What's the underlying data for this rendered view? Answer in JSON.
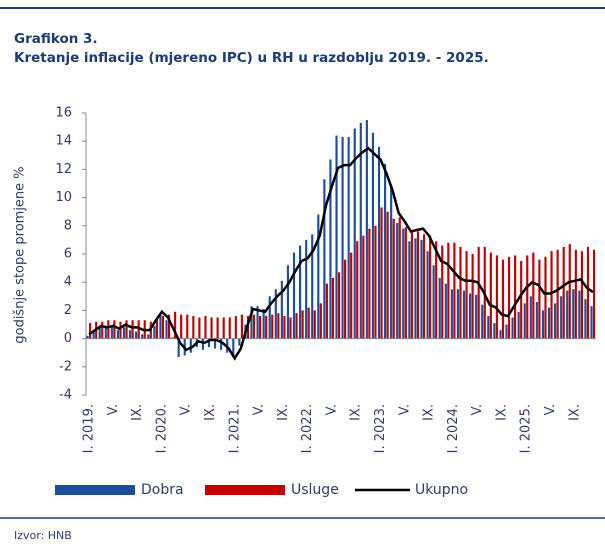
{
  "chart_data": {
    "type": "bar-line",
    "title": "Grafikon 3.",
    "subtitle": "Kretanje inflacije (mjereno IPC) u RH u razdoblju 2019. - 2025.",
    "y_label": "godišnje stope promjene %",
    "source": "Izvor: HNB",
    "legend": "bottom",
    "categories": [
      "I. 2019.",
      null,
      null,
      null,
      "V.",
      null,
      null,
      null,
      "IX.",
      null,
      null,
      null,
      "I. 2020.",
      null,
      null,
      null,
      "V.",
      null,
      null,
      null,
      "IX.",
      null,
      null,
      null,
      "I. 2021.",
      null,
      null,
      null,
      "V.",
      null,
      null,
      null,
      "IX.",
      null,
      null,
      null,
      "I. 2022.",
      null,
      null,
      null,
      "V.",
      null,
      null,
      null,
      "IX.",
      null,
      null,
      null,
      "I. 2023.",
      null,
      null,
      null,
      "V.",
      null,
      null,
      null,
      "IX.",
      null,
      null,
      null,
      "I. 2024.",
      null,
      null,
      null,
      "V.",
      null,
      null,
      null,
      "IX.",
      null,
      null,
      null,
      "I. 2025.",
      null,
      null,
      null,
      "V.",
      null,
      null,
      null,
      "IX.",
      null,
      null,
      null
    ],
    "ylim": [
      -4,
      16
    ],
    "yticks": [
      -4,
      -2,
      0,
      2,
      4,
      6,
      8,
      10,
      12,
      14,
      16
    ],
    "series": [
      {
        "name": "Dobra",
        "kind": "bar",
        "color": "#1f4e99",
        "values": [
          0.2,
          0.6,
          0.8,
          0.9,
          0.9,
          0.6,
          0.8,
          0.6,
          0.5,
          0.3,
          0.3,
          0.9,
          1.8,
          1.3,
          0.1,
          -1.3,
          -1.2,
          -1.0,
          -0.6,
          -0.8,
          -0.6,
          -0.7,
          -0.8,
          -1.0,
          -1.3,
          -0.5,
          1.0,
          2.3,
          2.3,
          2.1,
          3.0,
          3.5,
          4.1,
          5.2,
          6.1,
          6.6,
          7.0,
          7.4,
          8.8,
          11.3,
          12.7,
          14.4,
          14.3,
          14.3,
          14.9,
          15.3,
          15.5,
          14.6,
          13.6,
          12.4,
          10.8,
          8.2,
          7.8,
          6.9,
          7.1,
          7.0,
          6.2,
          5.2,
          4.3,
          3.9,
          3.5,
          3.5,
          3.4,
          3.2,
          3.1,
          2.4,
          1.6,
          1.1,
          0.6,
          1.0,
          1.5,
          1.9,
          2.5,
          3.0,
          2.6,
          2.0,
          2.2,
          2.5,
          3.0,
          3.4,
          3.5,
          3.4,
          2.8,
          2.3
        ]
      },
      {
        "name": "Usluge",
        "kind": "bar",
        "color": "#c00000",
        "values": [
          1.1,
          1.2,
          1.2,
          1.3,
          1.3,
          1.2,
          1.3,
          1.3,
          1.3,
          1.3,
          1.2,
          1.4,
          1.6,
          1.7,
          1.9,
          1.7,
          1.7,
          1.6,
          1.5,
          1.6,
          1.5,
          1.5,
          1.5,
          1.5,
          1.6,
          1.7,
          1.6,
          1.7,
          1.6,
          1.6,
          1.7,
          1.8,
          1.6,
          1.5,
          1.8,
          2.0,
          2.2,
          2.0,
          2.5,
          3.9,
          4.3,
          4.7,
          5.6,
          6.1,
          6.9,
          7.3,
          7.8,
          8.0,
          9.3,
          9.0,
          8.5,
          8.6,
          7.9,
          7.7,
          7.6,
          7.4,
          7.3,
          6.9,
          6.6,
          6.8,
          6.8,
          6.5,
          6.2,
          6.0,
          6.5,
          6.5,
          6.1,
          5.9,
          5.6,
          5.8,
          5.9,
          5.5,
          5.9,
          6.1,
          5.6,
          5.8,
          6.2,
          6.3,
          6.5,
          6.7,
          6.3,
          6.2,
          6.5,
          6.3
        ]
      },
      {
        "name": "Ukupno",
        "kind": "line",
        "color": "#000000",
        "values": [
          0.3,
          0.6,
          0.9,
          0.8,
          0.9,
          0.7,
          1.0,
          0.8,
          0.8,
          0.6,
          0.6,
          1.3,
          1.9,
          1.5,
          0.6,
          -0.3,
          -0.8,
          -0.6,
          -0.2,
          -0.3,
          -0.1,
          -0.1,
          -0.3,
          -0.7,
          -1.4,
          -0.7,
          0.8,
          2.1,
          2.0,
          1.9,
          2.5,
          3.0,
          3.4,
          4.0,
          4.8,
          5.5,
          5.7,
          6.3,
          7.3,
          9.4,
          10.8,
          12.1,
          12.3,
          12.3,
          12.8,
          13.2,
          13.5,
          13.1,
          12.7,
          11.7,
          10.5,
          8.9,
          8.3,
          7.6,
          7.7,
          7.8,
          7.3,
          6.4,
          5.5,
          5.3,
          4.8,
          4.3,
          4.1,
          4.1,
          4.0,
          3.3,
          2.4,
          2.2,
          1.7,
          1.6,
          2.3,
          3.0,
          3.6,
          4.0,
          3.8,
          3.2,
          3.2,
          3.4,
          3.7,
          4.0,
          4.1,
          4.2,
          3.6,
          3.3
        ]
      }
    ]
  }
}
